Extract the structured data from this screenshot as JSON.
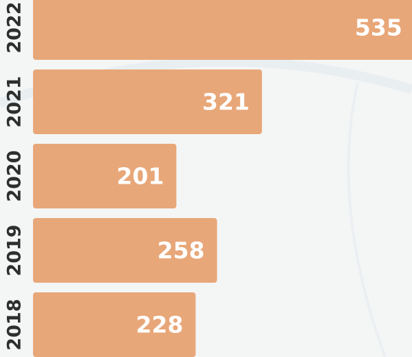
{
  "chart_data": {
    "type": "bar",
    "orientation": "horizontal",
    "categories": [
      "2022",
      "2021",
      "2020",
      "2019",
      "2018"
    ],
    "values": [
      535,
      321,
      201,
      258,
      228
    ],
    "color": "#e8a779"
  }
}
